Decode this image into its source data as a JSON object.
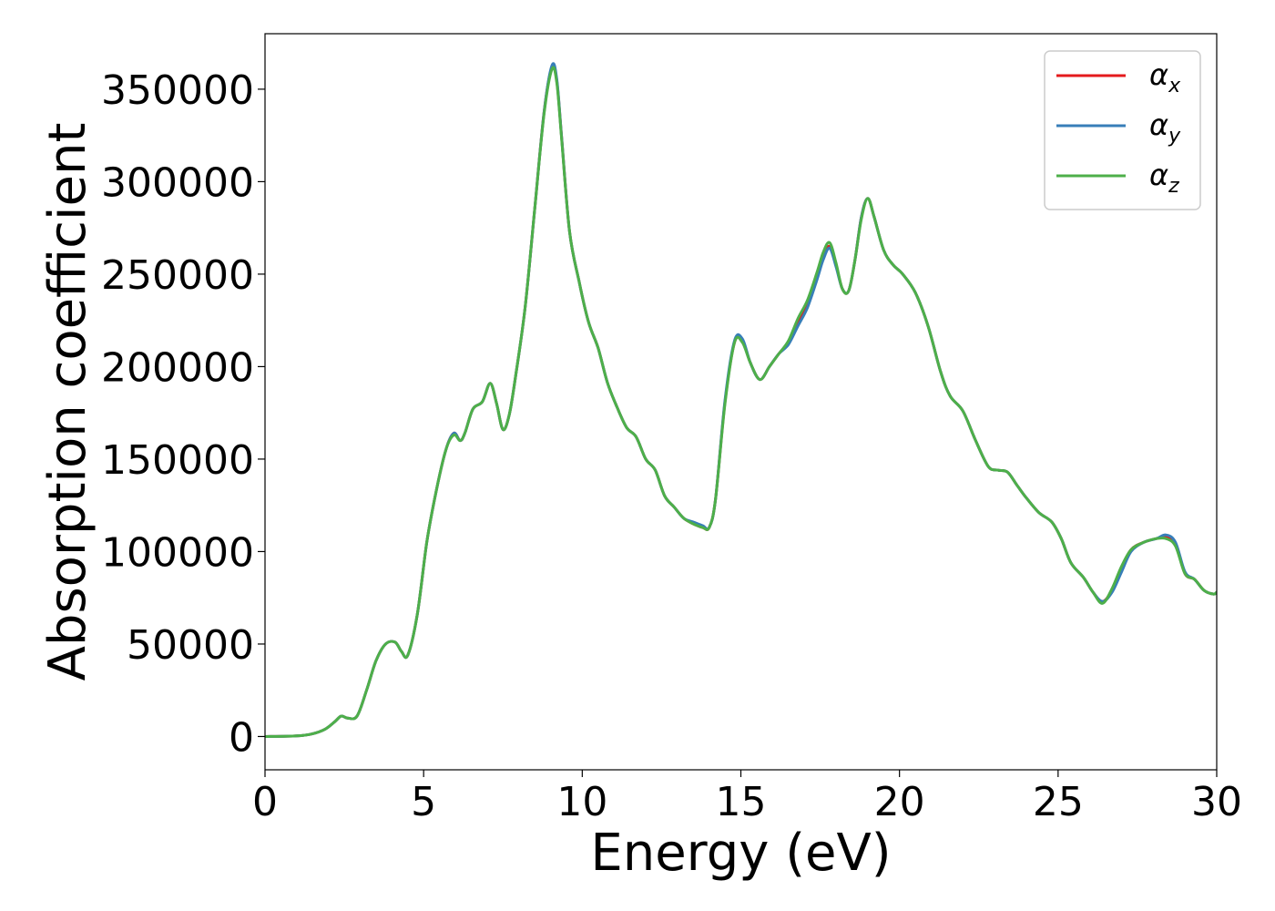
{
  "chart_data": {
    "type": "line",
    "title": "",
    "xlabel": "Energy (eV)",
    "ylabel": "Absorption coefficient",
    "xlim": [
      0,
      30
    ],
    "ylim": [
      -18000,
      380000
    ],
    "xticks": [
      0,
      5,
      10,
      15,
      20,
      25,
      30
    ],
    "xtick_labels": [
      "0",
      "5",
      "10",
      "15",
      "20",
      "25",
      "30"
    ],
    "yticks": [
      0,
      50000,
      100000,
      150000,
      200000,
      250000,
      300000,
      350000
    ],
    "ytick_labels": [
      "0",
      "50000",
      "100000",
      "150000",
      "200000",
      "250000",
      "300000",
      "350000"
    ],
    "grid": false,
    "legend_position": "top-right",
    "x": [
      0,
      1,
      1.5,
      1.9,
      2.2,
      2.4,
      2.6,
      2.9,
      3.2,
      3.5,
      3.8,
      4.1,
      4.3,
      4.5,
      4.8,
      5.1,
      5.4,
      5.7,
      5.95,
      6.15,
      6.3,
      6.55,
      6.85,
      7.1,
      7.3,
      7.5,
      7.7,
      7.9,
      8.2,
      8.5,
      8.8,
      9.05,
      9.2,
      9.35,
      9.6,
      9.9,
      10.2,
      10.5,
      10.8,
      11.1,
      11.4,
      11.7,
      12.0,
      12.3,
      12.6,
      12.9,
      13.2,
      13.5,
      13.8,
      14.0,
      14.2,
      14.5,
      14.8,
      15.05,
      15.3,
      15.6,
      15.9,
      16.2,
      16.5,
      16.8,
      17.1,
      17.4,
      17.6,
      17.8,
      18.0,
      18.2,
      18.4,
      18.6,
      18.8,
      19.0,
      19.2,
      19.5,
      19.8,
      20.1,
      20.5,
      20.9,
      21.3,
      21.6,
      22.0,
      22.4,
      22.8,
      23.1,
      23.4,
      23.7,
      24.0,
      24.4,
      24.8,
      25.1,
      25.4,
      25.8,
      26.1,
      26.4,
      26.7,
      27.0,
      27.3,
      27.7,
      28.1,
      28.4,
      28.7,
      29.0,
      29.3,
      29.6,
      29.9,
      30.0
    ],
    "series": [
      {
        "name": "α_x",
        "color": "#e41a1c",
        "values": [
          0,
          300,
          1500,
          4000,
          8000,
          11000,
          10000,
          11000,
          25000,
          41000,
          50000,
          51000,
          46000,
          44000,
          66000,
          105000,
          133000,
          155000,
          164000,
          160000,
          164000,
          177000,
          181000,
          191000,
          180000,
          166000,
          174000,
          195000,
          232000,
          285000,
          338000,
          362000,
          354000,
          324000,
          273000,
          246000,
          224000,
          210000,
          191000,
          178000,
          167000,
          162000,
          150000,
          144000,
          130000,
          124000,
          118000,
          115000,
          113000,
          113000,
          128000,
          181000,
          213000,
          214000,
          202000,
          193000,
          200000,
          207000,
          213000,
          224000,
          234000,
          249000,
          260000,
          265000,
          255000,
          242000,
          241000,
          258000,
          281000,
          291000,
          281000,
          263000,
          255000,
          250000,
          240000,
          222000,
          197000,
          184000,
          176000,
          160000,
          146000,
          144000,
          143000,
          136000,
          129000,
          121000,
          116000,
          107000,
          94000,
          86000,
          78000,
          73000,
          79000,
          91000,
          101000,
          105000,
          107000,
          108000,
          104000,
          88000,
          85000,
          79000,
          77000,
          78000
        ]
      },
      {
        "name": "α_y",
        "color": "#377eb8",
        "values": [
          0,
          300,
          1500,
          4000,
          8000,
          11000,
          10000,
          11000,
          25000,
          41000,
          50000,
          51000,
          46000,
          44000,
          66000,
          105000,
          133000,
          155000,
          164000,
          160000,
          164000,
          177000,
          181000,
          191000,
          180000,
          166000,
          174000,
          195000,
          232000,
          285000,
          338000,
          363000,
          355000,
          324000,
          273000,
          246000,
          224000,
          210000,
          191000,
          178000,
          167000,
          162000,
          150000,
          144000,
          130000,
          124000,
          118000,
          116000,
          114000,
          113000,
          128000,
          182000,
          214000,
          215000,
          202000,
          193000,
          200000,
          207000,
          212000,
          222000,
          232000,
          247000,
          258000,
          264000,
          254000,
          242000,
          241000,
          258000,
          281000,
          291000,
          281000,
          263000,
          255000,
          250000,
          240000,
          222000,
          197000,
          184000,
          176000,
          160000,
          146000,
          144000,
          143000,
          136000,
          129000,
          121000,
          116000,
          107000,
          94000,
          86000,
          78000,
          73000,
          78000,
          89000,
          100000,
          105000,
          107000,
          109000,
          105000,
          89000,
          85000,
          79000,
          77000,
          78000
        ]
      },
      {
        "name": "α_z",
        "color": "#4daf4a",
        "values": [
          0,
          300,
          1500,
          4000,
          8000,
          11000,
          10000,
          11000,
          25000,
          41000,
          50000,
          51000,
          46000,
          44000,
          66000,
          105000,
          133000,
          155000,
          163000,
          160000,
          164000,
          177000,
          181000,
          191000,
          180000,
          166000,
          174000,
          195000,
          232000,
          285000,
          337000,
          361000,
          353000,
          323000,
          273000,
          246000,
          224000,
          210000,
          191000,
          178000,
          167000,
          162000,
          150000,
          144000,
          130000,
          124000,
          118000,
          115000,
          113000,
          113000,
          128000,
          180000,
          213000,
          213000,
          202000,
          193000,
          200000,
          207000,
          214000,
          226000,
          236000,
          251000,
          262000,
          267000,
          256000,
          242000,
          241000,
          258000,
          280000,
          291000,
          281000,
          263000,
          255000,
          250000,
          240000,
          222000,
          197000,
          184000,
          176000,
          160000,
          146000,
          144000,
          143000,
          136000,
          129000,
          121000,
          116000,
          107000,
          94000,
          86000,
          78000,
          72000,
          80000,
          92000,
          101000,
          105000,
          107000,
          107000,
          103000,
          88000,
          85000,
          79000,
          77000,
          78000
        ]
      }
    ],
    "legend": [
      {
        "symbol": "α",
        "sub": "x",
        "color": "#e41a1c"
      },
      {
        "symbol": "α",
        "sub": "y",
        "color": "#377eb8"
      },
      {
        "symbol": "α",
        "sub": "z",
        "color": "#4daf4a"
      }
    ]
  }
}
